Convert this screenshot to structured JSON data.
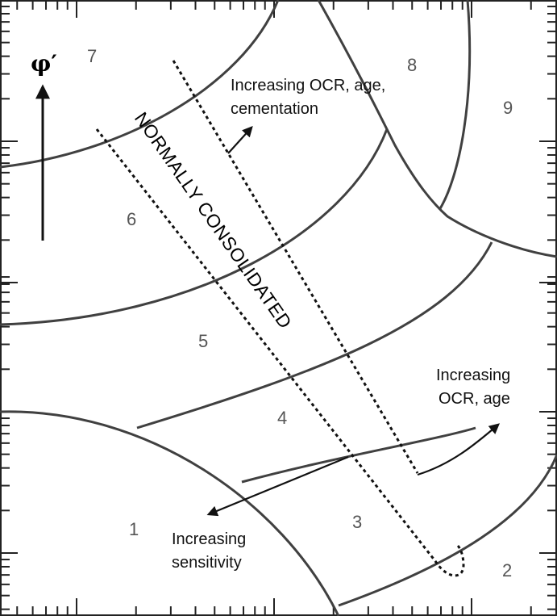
{
  "axis": {
    "symbol": "φ′"
  },
  "normally_consolidated_label": "NORMALLY CONSOLIDATED",
  "zones": [
    "1",
    "2",
    "3",
    "4",
    "5",
    "6",
    "7",
    "8",
    "9"
  ],
  "annotations": {
    "ocr_age_cementation": [
      "Increasing OCR, age,",
      "cementation"
    ],
    "ocr_age": [
      "Increasing",
      "OCR, age"
    ],
    "sensitivity": [
      "Increasing",
      "sensitivity"
    ]
  },
  "colors": {
    "boundary": "#404040",
    "zone_number": "#555555",
    "text": "#111111"
  }
}
